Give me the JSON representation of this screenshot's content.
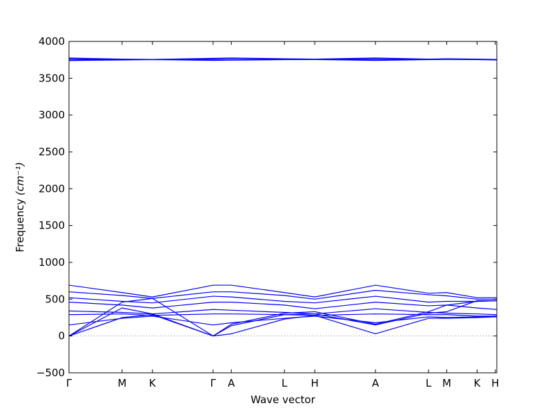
{
  "chart_data": {
    "type": "line",
    "title": "",
    "xlabel": "Wave vector",
    "ylabel_main": "Frequency ",
    "ylabel_unit": "(cm⁻¹)",
    "ylim": [
      -500,
      4000
    ],
    "yticks": [
      -500,
      0,
      500,
      1000,
      1500,
      2000,
      2500,
      3000,
      3500,
      4000
    ],
    "grid": false,
    "legend": "none",
    "line_color": "#0000ff",
    "zero_line_color": "#808080",
    "x_domain": [
      0,
      14.1
    ],
    "x_ticks": [
      {
        "label": "Γ",
        "x": 0.0
      },
      {
        "label": "M",
        "x": 1.75
      },
      {
        "label": "K",
        "x": 2.75
      },
      {
        "label": "Γ",
        "x": 4.75
      },
      {
        "label": "A",
        "x": 5.35
      },
      {
        "label": "L",
        "x": 7.1
      },
      {
        "label": "H",
        "x": 8.1
      },
      {
        "label": "A",
        "x": 10.1
      },
      {
        "label": "L",
        "x": 11.85
      },
      {
        "label": "M",
        "x": 12.45
      },
      {
        "label": "K",
        "x": 13.45
      },
      {
        "label": "H",
        "x": 14.05
      }
    ],
    "series": [
      {
        "x": [
          0,
          1.75,
          2.75,
          4.75,
          5.35,
          7.1,
          8.1,
          10.1,
          11.85,
          12.45,
          13.45,
          14.1
        ],
        "y": [
          3775,
          3760,
          3755,
          3770,
          3775,
          3765,
          3760,
          3775,
          3760,
          3765,
          3760,
          3755
        ]
      },
      {
        "x": [
          0,
          1.75,
          2.75,
          4.75,
          5.35,
          7.1,
          8.1,
          10.1,
          11.85,
          12.45,
          13.45,
          14.1
        ],
        "y": [
          3765,
          3758,
          3755,
          3762,
          3768,
          3760,
          3758,
          3765,
          3758,
          3760,
          3757,
          3752
        ]
      },
      {
        "x": [
          0,
          1.75,
          2.75,
          4.75,
          5.35,
          7.1,
          8.1,
          10.1,
          11.85,
          12.45,
          13.45,
          14.1
        ],
        "y": [
          3750,
          3752,
          3755,
          3748,
          3750,
          3755,
          3756,
          3750,
          3755,
          3757,
          3755,
          3750
        ]
      },
      {
        "x": [
          0,
          1.75,
          2.75,
          4.75,
          5.35,
          7.1,
          8.1,
          10.1,
          11.85,
          12.45,
          13.45,
          14.1
        ],
        "y": [
          3740,
          3748,
          3753,
          3742,
          3745,
          3752,
          3754,
          3742,
          3752,
          3755,
          3753,
          3748
        ]
      },
      {
        "x": [
          0,
          1.75,
          2.75,
          4.75,
          5.35,
          7.1,
          8.1,
          10.1,
          11.85,
          12.45,
          13.45,
          14.1
        ],
        "y": [
          690,
          590,
          530,
          690,
          690,
          590,
          530,
          690,
          580,
          590,
          520,
          520
        ]
      },
      {
        "x": [
          0,
          1.75,
          2.75,
          4.75,
          5.35,
          7.1,
          8.1,
          10.1,
          11.85,
          12.45,
          13.45,
          14.1
        ],
        "y": [
          600,
          550,
          510,
          600,
          600,
          550,
          500,
          620,
          560,
          545,
          500,
          500
        ]
      },
      {
        "x": [
          0,
          1.75,
          2.75,
          4.75,
          5.35,
          7.1,
          8.1,
          10.1,
          11.85,
          12.45,
          13.45,
          14.1
        ],
        "y": [
          520,
          470,
          450,
          540,
          530,
          470,
          450,
          540,
          460,
          470,
          470,
          480
        ]
      },
      {
        "x": [
          0,
          1.75,
          2.75,
          4.75,
          5.35,
          7.1,
          8.1,
          10.1,
          11.85,
          12.45,
          13.45,
          14.1
        ],
        "y": [
          460,
          420,
          380,
          460,
          460,
          420,
          370,
          460,
          410,
          420,
          380,
          360
        ]
      },
      {
        "x": [
          0,
          1.75,
          2.75,
          4.75,
          5.35,
          7.1,
          8.1,
          10.1,
          11.85,
          12.45,
          13.45,
          14.1
        ],
        "y": [
          340,
          320,
          300,
          360,
          350,
          320,
          300,
          370,
          320,
          310,
          300,
          290
        ]
      },
      {
        "x": [
          0,
          1.75,
          2.75,
          4.75,
          5.35,
          7.1,
          8.1,
          10.1,
          11.85,
          12.45,
          13.45,
          14.1
        ],
        "y": [
          290,
          300,
          280,
          300,
          300,
          290,
          280,
          300,
          290,
          290,
          270,
          270
        ]
      },
      {
        "x": [
          0,
          1.75,
          2.75,
          4.75,
          5.35,
          7.1,
          8.1,
          10.1,
          11.85,
          12.45,
          13.45,
          14.1
        ],
        "y": [
          150,
          240,
          270,
          150,
          180,
          240,
          270,
          180,
          260,
          250,
          260,
          270
        ]
      },
      {
        "x": [
          0,
          1.75,
          2.75,
          4.75,
          5.35,
          7.1,
          8.1,
          10.1,
          11.85,
          12.45,
          13.45,
          14.1
        ],
        "y": [
          0,
          460,
          510,
          0,
          30,
          230,
          280,
          30,
          240,
          240,
          250,
          260
        ]
      },
      {
        "x": [
          0,
          1.75,
          2.75,
          4.75,
          5.35,
          7.1,
          8.1,
          10.1,
          11.85,
          12.45,
          13.45,
          14.1
        ],
        "y": [
          0,
          380,
          300,
          0,
          140,
          290,
          300,
          150,
          310,
          330,
          480,
          480
        ]
      },
      {
        "x": [
          0,
          1.75,
          2.75,
          4.75,
          5.35,
          7.1,
          8.1,
          10.1,
          11.85,
          12.45,
          13.45,
          14.1
        ],
        "y": [
          0,
          250,
          290,
          0,
          160,
          310,
          330,
          160,
          330,
          420,
          470,
          480
        ]
      }
    ]
  }
}
